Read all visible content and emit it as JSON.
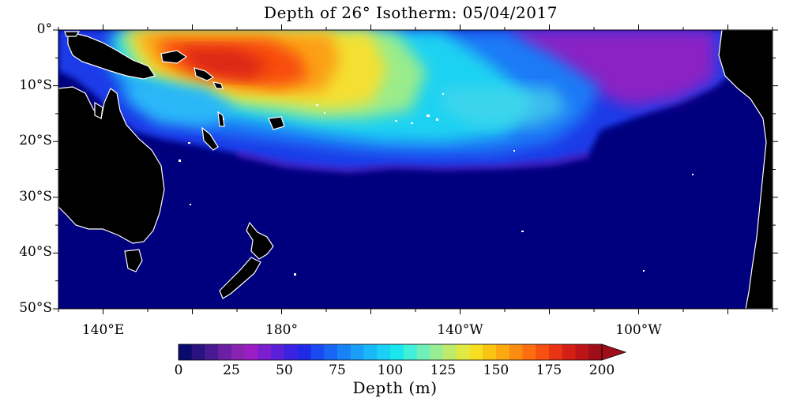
{
  "title": "Depth of 26° Isotherm: 05/04/2017",
  "y_ticks": [
    "0°",
    "10°S",
    "20°S",
    "30°S",
    "40°S",
    "50°S"
  ],
  "x_ticks": [
    "140°E",
    "180°",
    "140°W",
    "100°W"
  ],
  "colorbar": {
    "label": "Depth (m)",
    "min": 0,
    "max": 200,
    "ticks": [
      "0",
      "25",
      "50",
      "75",
      "100",
      "125",
      "150",
      "175",
      "200"
    ],
    "colors": [
      "#0a0a6e",
      "#2a1280",
      "#4a1a92",
      "#6a20a4",
      "#8a22b2",
      "#9a1ec4",
      "#7a1ed0",
      "#5a20d8",
      "#3a22e0",
      "#1e2ae8",
      "#1a4af0",
      "#1a66f4",
      "#1a82f8",
      "#1a9ef8",
      "#1ab8f8",
      "#1ad0f4",
      "#1ae6ee",
      "#40f0d8",
      "#70f0b8",
      "#98ec92",
      "#c0ea6a",
      "#e2e844",
      "#f8de22",
      "#fac412",
      "#fca810",
      "#fc8c10",
      "#fc6e10",
      "#f85010",
      "#e83412",
      "#d42014",
      "#bc1418",
      "#a00c18"
    ],
    "overflow_color": "#a00c18"
  },
  "map": {
    "ocean_color": "#00007f",
    "land_color": "#000000",
    "coast_color": "#ffffff"
  }
}
